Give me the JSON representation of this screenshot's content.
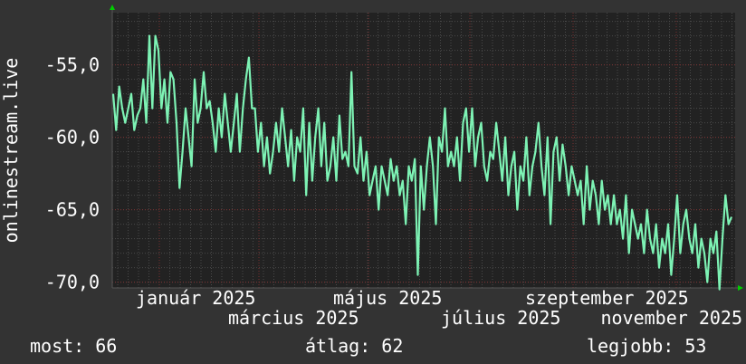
{
  "chart_data": {
    "type": "line",
    "ylabel": "onlinestream.live",
    "ylim": [
      -70.4,
      -51.4
    ],
    "y_ticks": [
      {
        "value": -55,
        "label": "-55,0"
      },
      {
        "value": -60,
        "label": "-60,0"
      },
      {
        "value": -65,
        "label": "-65,0"
      },
      {
        "value": -70,
        "label": "-70,0"
      }
    ],
    "x_ticks": [
      "január 2025",
      "március 2025",
      "május 2025",
      "július 2025",
      "szeptember 2025",
      "november 2025"
    ],
    "grid": true,
    "line_color": "#7df2b4",
    "values": [
      -57,
      -59.5,
      -56.5,
      -58,
      -59,
      -58,
      -57,
      -59.5,
      -58.5,
      -58,
      -56,
      -59,
      -53,
      -58,
      -53,
      -54,
      -58,
      -56,
      -59,
      -55.5,
      -56,
      -59,
      -63.5,
      -61,
      -58,
      -60,
      -62,
      -56,
      -59,
      -58,
      -55.5,
      -58,
      -57.5,
      -59,
      -61,
      -58,
      -60,
      -57,
      -59,
      -61,
      -59,
      -57,
      -61,
      -58,
      -56,
      -54.5,
      -58,
      -58,
      -61,
      -59,
      -62,
      -60,
      -62.5,
      -61,
      -59,
      -61,
      -58,
      -60,
      -62,
      -59.5,
      -63,
      -60,
      -61,
      -58,
      -64,
      -59,
      -63,
      -60,
      -58,
      -62,
      -59,
      -63,
      -62,
      -60,
      -63,
      -58.5,
      -61.5,
      -61,
      -62,
      -55.5,
      -62,
      -62.5,
      -60,
      -63,
      -61,
      -64,
      -63,
      -62,
      -65,
      -62,
      -63,
      -64,
      -61.5,
      -63,
      -62,
      -64,
      -63,
      -66,
      -62,
      -63,
      -61.5,
      -69.5,
      -62,
      -65,
      -62,
      -60,
      -62,
      -66,
      -60,
      -61,
      -58,
      -62,
      -61,
      -62,
      -60,
      -63,
      -59,
      -58,
      -61,
      -58,
      -62,
      -60,
      -59,
      -62,
      -63,
      -61,
      -61.5,
      -59,
      -61,
      -63,
      -60,
      -64,
      -62,
      -61,
      -65,
      -62,
      -63,
      -60,
      -64,
      -62,
      -61,
      -59,
      -62,
      -64,
      -60,
      -66,
      -61,
      -60,
      -63,
      -60.5,
      -62,
      -64,
      -62,
      -63,
      -64,
      -63,
      -66,
      -62,
      -65,
      -63,
      -64,
      -66,
      -63,
      -65,
      -64,
      -66,
      -64,
      -66,
      -65,
      -67,
      -64,
      -68,
      -65,
      -66,
      -67,
      -66,
      -68,
      -65,
      -67,
      -68,
      -66,
      -69,
      -67,
      -68,
      -66,
      -69.5,
      -67,
      -64,
      -68,
      -66,
      -65,
      -67,
      -68,
      -66,
      -69,
      -67,
      -68,
      -70,
      -67,
      -68,
      -66.5,
      -70.5,
      -67,
      -64,
      -66,
      -65.5
    ]
  },
  "legend": {
    "current": "most: 66",
    "average": "átlag: 62",
    "best": "legjobb: 53"
  },
  "colors": {
    "background": "#333333",
    "plot": "#222222",
    "major_grid": "#7a3030",
    "minor_grid": "#4a4a4a",
    "axis_arrow": "#00cc00"
  }
}
